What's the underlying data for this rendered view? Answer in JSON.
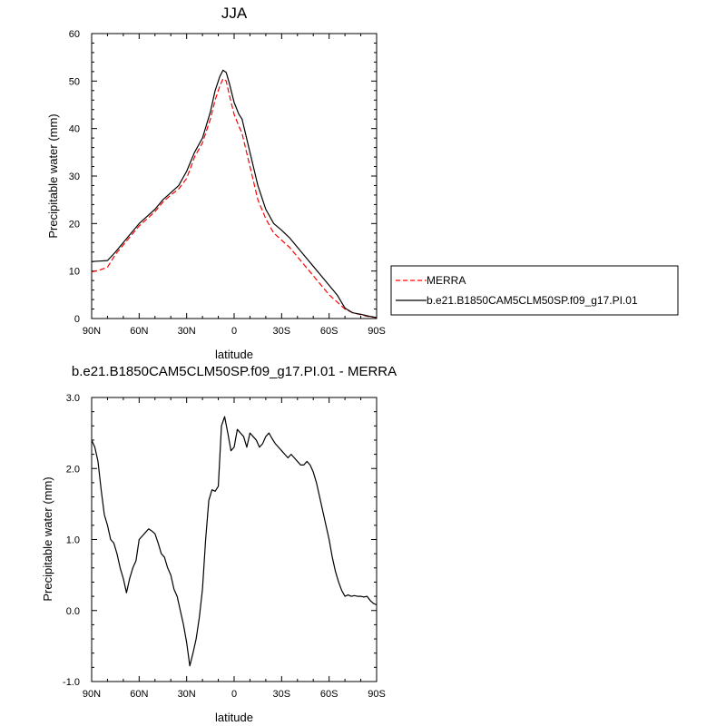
{
  "chart_data": [
    {
      "type": "line",
      "title": "JJA",
      "xlabel": "latitude",
      "ylabel": "Precipitable water (mm)",
      "xlim": [
        -90,
        90
      ],
      "ylim": [
        0,
        60
      ],
      "x_ticks": [
        {
          "value": -90,
          "label": "90N"
        },
        {
          "value": -60,
          "label": "60N"
        },
        {
          "value": -30,
          "label": "30N"
        },
        {
          "value": 0,
          "label": "0"
        },
        {
          "value": 30,
          "label": "30S"
        },
        {
          "value": 60,
          "label": "60S"
        },
        {
          "value": 90,
          "label": "90S"
        }
      ],
      "y_ticks": [
        {
          "value": 0,
          "label": "0"
        },
        {
          "value": 10,
          "label": "10"
        },
        {
          "value": 20,
          "label": "20"
        },
        {
          "value": 30,
          "label": "30"
        },
        {
          "value": 40,
          "label": "40"
        },
        {
          "value": 50,
          "label": "50"
        },
        {
          "value": 60,
          "label": "60"
        }
      ],
      "legend": {
        "position": "right",
        "entries": [
          "MERRA",
          "b.e21.B1850CAM5CLM50SP.f09_g17.PI.01"
        ]
      },
      "series": [
        {
          "name": "MERRA",
          "color": "#ff0000",
          "dash": "dashed",
          "x": [
            -90,
            -85,
            -80,
            -75,
            -70,
            -65,
            -60,
            -55,
            -50,
            -45,
            -40,
            -35,
            -30,
            -25,
            -20,
            -15,
            -12,
            -9,
            -7,
            -5,
            -3,
            0,
            3,
            5,
            10,
            15,
            20,
            25,
            30,
            35,
            40,
            45,
            50,
            55,
            60,
            65,
            70,
            75,
            80,
            85,
            90
          ],
          "y": [
            9.8,
            10.2,
            10.8,
            13.5,
            15.5,
            17.5,
            19.5,
            21,
            22.5,
            24.5,
            26,
            27.3,
            29.5,
            34,
            37,
            42,
            46,
            49,
            50.5,
            50,
            47,
            43,
            40.5,
            39,
            32,
            25,
            21,
            18,
            16.5,
            15,
            13,
            11,
            9,
            7,
            5,
            3.5,
            2,
            1.2,
            0.8,
            0.4,
            0.2
          ]
        },
        {
          "name": "b.e21.B1850CAM5CLM50SP.f09_g17.PI.01",
          "color": "#000000",
          "dash": "solid",
          "x": [
            -90,
            -85,
            -80,
            -75,
            -70,
            -65,
            -60,
            -55,
            -50,
            -45,
            -40,
            -35,
            -30,
            -25,
            -20,
            -15,
            -12,
            -9,
            -7,
            -5,
            -3,
            0,
            3,
            5,
            10,
            15,
            20,
            25,
            30,
            35,
            40,
            45,
            50,
            55,
            60,
            65,
            70,
            75,
            80,
            85,
            90
          ],
          "y": [
            12,
            12.1,
            12.2,
            14,
            16,
            18,
            20,
            21.5,
            23,
            25,
            26.5,
            28,
            31,
            35,
            38,
            43.5,
            48,
            51,
            52.3,
            51.8,
            49.5,
            45.5,
            43,
            42,
            35,
            28,
            23,
            20,
            18.6,
            17,
            15,
            13,
            11,
            9,
            7,
            5,
            2.2,
            1.2,
            0.9,
            0.5,
            0.2
          ]
        }
      ]
    },
    {
      "type": "line",
      "title": "b.e21.B1850CAM5CLM50SP.f09_g17.PI.01 - MERRA",
      "xlabel": "latitude",
      "ylabel": "Precipitable water (mm)",
      "xlim": [
        -90,
        90
      ],
      "ylim": [
        -1.0,
        3.0
      ],
      "x_ticks": [
        {
          "value": -90,
          "label": "90N"
        },
        {
          "value": -60,
          "label": "60N"
        },
        {
          "value": -30,
          "label": "30N"
        },
        {
          "value": 0,
          "label": "0"
        },
        {
          "value": 30,
          "label": "30S"
        },
        {
          "value": 60,
          "label": "60S"
        },
        {
          "value": 90,
          "label": "90S"
        }
      ],
      "y_ticks": [
        {
          "value": -1.0,
          "label": "-1.0"
        },
        {
          "value": 0.0,
          "label": "0.0"
        },
        {
          "value": 1.0,
          "label": "1.0"
        },
        {
          "value": 2.0,
          "label": "2.0"
        },
        {
          "value": 3.0,
          "label": "3.0"
        }
      ],
      "series": [
        {
          "name": "b.e21.B1850CAM5CLM50SP.f09_g17.PI.01 - MERRA",
          "color": "#000000",
          "dash": "solid",
          "x": [
            -90,
            -88,
            -86,
            -84,
            -82,
            -80,
            -78,
            -76,
            -74,
            -72,
            -70,
            -68,
            -66,
            -64,
            -62,
            -60,
            -58,
            -56,
            -54,
            -52,
            -50,
            -48,
            -46,
            -44,
            -42,
            -40,
            -38,
            -36,
            -34,
            -32,
            -30,
            -28,
            -26,
            -24,
            -22,
            -20,
            -18,
            -16,
            -14,
            -12,
            -10,
            -8,
            -6,
            -4,
            -2,
            0,
            2,
            4,
            6,
            8,
            10,
            12,
            14,
            16,
            18,
            20,
            22,
            24,
            26,
            28,
            30,
            32,
            34,
            36,
            38,
            40,
            42,
            44,
            46,
            48,
            50,
            52,
            54,
            56,
            58,
            60,
            62,
            64,
            66,
            68,
            70,
            72,
            74,
            76,
            78,
            80,
            82,
            84,
            86,
            88,
            90
          ],
          "y": [
            2.4,
            2.3,
            2.1,
            1.7,
            1.35,
            1.2,
            1.0,
            0.95,
            0.8,
            0.6,
            0.45,
            0.25,
            0.45,
            0.6,
            0.7,
            1.0,
            1.05,
            1.1,
            1.15,
            1.12,
            1.08,
            0.95,
            0.8,
            0.75,
            0.6,
            0.5,
            0.3,
            0.2,
            0.0,
            -0.2,
            -0.45,
            -0.78,
            -0.6,
            -0.4,
            -0.1,
            0.3,
            1.0,
            1.55,
            1.7,
            1.68,
            1.75,
            2.6,
            2.73,
            2.5,
            2.25,
            2.3,
            2.55,
            2.5,
            2.45,
            2.3,
            2.5,
            2.45,
            2.4,
            2.3,
            2.35,
            2.45,
            2.5,
            2.42,
            2.35,
            2.3,
            2.25,
            2.2,
            2.15,
            2.2,
            2.15,
            2.1,
            2.05,
            2.05,
            2.1,
            2.05,
            1.95,
            1.8,
            1.6,
            1.4,
            1.2,
            1.0,
            0.75,
            0.55,
            0.4,
            0.28,
            0.2,
            0.22,
            0.2,
            0.21,
            0.2,
            0.2,
            0.19,
            0.2,
            0.14,
            0.1,
            0.08
          ]
        }
      ]
    }
  ]
}
